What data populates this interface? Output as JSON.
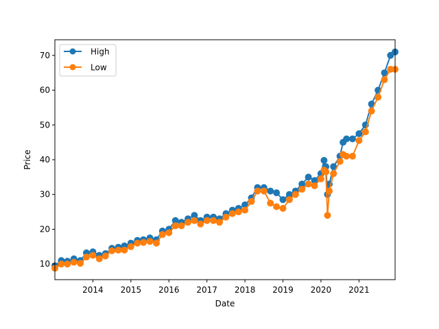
{
  "chart_data": {
    "type": "line",
    "xlabel": "Date",
    "ylabel": "Price",
    "x_tick_labels": [
      "2014",
      "2015",
      "2016",
      "2017",
      "2018",
      "2019",
      "2020",
      "2021"
    ],
    "y_tick_labels": [
      "10",
      "20",
      "30",
      "40",
      "50",
      "60",
      "70"
    ],
    "xlim": [
      2013.0,
      2021.95
    ],
    "ylim": [
      5.5,
      74.5
    ],
    "x_ticks": [
      2014,
      2015,
      2016,
      2017,
      2018,
      2019,
      2020,
      2021
    ],
    "y_ticks": [
      10,
      20,
      30,
      40,
      50,
      60,
      70
    ],
    "grid": false,
    "legend": {
      "placement": "top-left",
      "entries": [
        "High",
        "Low"
      ]
    },
    "x": [
      2013.0,
      2013.17,
      2013.33,
      2013.5,
      2013.67,
      2013.83,
      2014.0,
      2014.17,
      2014.33,
      2014.5,
      2014.67,
      2014.83,
      2015.0,
      2015.17,
      2015.33,
      2015.5,
      2015.67,
      2015.83,
      2016.0,
      2016.17,
      2016.33,
      2016.5,
      2016.67,
      2016.83,
      2017.0,
      2017.17,
      2017.33,
      2017.5,
      2017.67,
      2017.83,
      2018.0,
      2018.17,
      2018.33,
      2018.5,
      2018.67,
      2018.83,
      2019.0,
      2019.17,
      2019.33,
      2019.5,
      2019.67,
      2019.83,
      2020.0,
      2020.08,
      2020.13,
      2020.17,
      2020.22,
      2020.33,
      2020.5,
      2020.58,
      2020.67,
      2020.83,
      2021.0,
      2021.17,
      2021.33,
      2021.5,
      2021.67,
      2021.83,
      2021.95
    ],
    "series": [
      {
        "name": "High",
        "color": "#1f77b4",
        "values": [
          9.5,
          11.0,
          10.8,
          11.5,
          11.0,
          13.2,
          13.5,
          12.5,
          13.0,
          14.5,
          14.8,
          15.2,
          16.0,
          16.8,
          17.0,
          17.5,
          17.0,
          19.5,
          20.0,
          22.5,
          22.0,
          23.0,
          24.0,
          22.5,
          23.5,
          23.5,
          23.0,
          24.5,
          25.5,
          26.0,
          27.0,
          29.0,
          32.0,
          32.0,
          31.0,
          30.5,
          28.5,
          30.0,
          31.0,
          33.0,
          35.0,
          34.0,
          36.0,
          39.8,
          38.0,
          30.0,
          33.0,
          38.0,
          41.0,
          45.0,
          46.0,
          46.0,
          47.5,
          50.0,
          56.0,
          60.0,
          65.0,
          70.0,
          71.0
        ]
      },
      {
        "name": "Low",
        "color": "#ff7f0e",
        "values": [
          8.8,
          10.0,
          10.0,
          10.5,
          10.2,
          12.0,
          12.5,
          11.5,
          12.3,
          13.8,
          14.0,
          14.0,
          15.0,
          16.0,
          16.2,
          16.5,
          16.0,
          18.5,
          19.0,
          21.0,
          21.0,
          22.0,
          22.5,
          21.5,
          22.5,
          22.5,
          22.0,
          23.5,
          24.5,
          25.0,
          25.5,
          28.0,
          31.0,
          31.0,
          27.5,
          26.5,
          26.0,
          28.5,
          30.0,
          31.5,
          33.0,
          32.5,
          34.5,
          37.0,
          36.5,
          24.0,
          31.0,
          36.0,
          39.5,
          41.5,
          41.0,
          41.0,
          45.5,
          48.0,
          54.0,
          58.0,
          63.0,
          66.0,
          66.0
        ]
      }
    ]
  }
}
